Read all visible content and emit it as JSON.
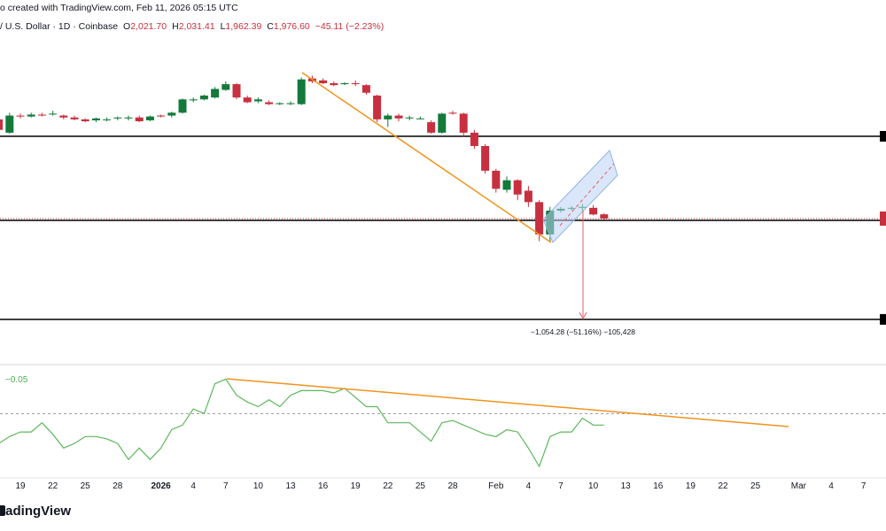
{
  "header": {
    "snapshot": "o created with TradingView.com, Feb 11, 2026 05:15 UTC",
    "symbol": "/ U.S. Dollar · 1D · Coinbase",
    "ohlc": [
      {
        "key": "O",
        "value": "2,021.70"
      },
      {
        "key": "H",
        "value": "2,031.41"
      },
      {
        "key": "L",
        "value": "1,962.39"
      },
      {
        "key": "C",
        "value": "1,976.60"
      }
    ],
    "change": "−45.11 (−2.23%)"
  },
  "chart_data": {
    "type": "candlestick",
    "categories": [
      null,
      null,
      "19",
      null,
      null,
      "22",
      null,
      null,
      "25",
      null,
      null,
      "28",
      null,
      null,
      null,
      "2026",
      null,
      null,
      "4",
      null,
      null,
      "7",
      null,
      null,
      "10",
      null,
      null,
      "13",
      null,
      null,
      "16",
      null,
      null,
      "19",
      null,
      null,
      "22",
      null,
      null,
      "25",
      null,
      null,
      "28",
      null,
      null,
      null,
      "Feb",
      null,
      null,
      "4",
      null,
      null,
      "7",
      null,
      null,
      "10",
      null,
      null,
      "13",
      null,
      null,
      "16",
      null,
      null,
      "19",
      null,
      null,
      "22",
      null,
      null,
      "25",
      null,
      null,
      null,
      "Mar",
      null,
      null,
      "4",
      null,
      null,
      "7",
      null
    ],
    "open": [
      3020,
      2880,
      3060,
      3050,
      3070,
      3080,
      3060,
      3040,
      3020,
      3010,
      3020,
      3030,
      3030,
      3040,
      3010,
      3060,
      3060,
      3090,
      3220,
      3230,
      3250,
      3330,
      3390,
      3250,
      3210,
      3200,
      3180,
      3180,
      3180,
      3450,
      3430,
      3400,
      3390,
      3400,
      3380,
      3270,
      3020,
      3060,
      3030,
      3030,
      2990,
      2880,
      3090,
      3080,
      2880,
      2740,
      2480,
      2280,
      2380,
      2270,
      2150,
      1810,
      2060,
      2080,
      2090,
      2090,
      2021.7,
      null,
      null,
      null,
      null,
      null,
      null,
      null,
      null,
      null,
      null,
      null,
      null,
      null,
      null,
      null,
      null,
      null,
      null,
      null,
      null,
      null,
      null,
      null,
      null,
      null
    ],
    "high": [
      3060,
      3090,
      3080,
      3090,
      3090,
      3110,
      3070,
      3060,
      3030,
      3040,
      3040,
      3050,
      3060,
      3060,
      3060,
      3070,
      3100,
      3240,
      3250,
      3280,
      3360,
      3420,
      3400,
      3270,
      3250,
      3220,
      3200,
      3210,
      3460,
      3480,
      3450,
      3420,
      3410,
      3430,
      3390,
      3280,
      3080,
      3080,
      3060,
      3050,
      3010,
      3090,
      3110,
      3090,
      2910,
      2760,
      2500,
      2420,
      2390,
      2320,
      2170,
      2100,
      2100,
      2110,
      2130,
      2120,
      2031.41,
      null,
      null,
      null,
      null,
      null,
      null,
      null,
      null,
      null,
      null,
      null,
      null,
      null,
      null,
      null,
      null,
      null,
      null,
      null,
      null,
      null,
      null,
      null,
      null,
      null
    ],
    "low": [
      2880,
      2870,
      3030,
      3040,
      3050,
      3060,
      3020,
      3010,
      2990,
      2990,
      3000,
      3010,
      3010,
      2990,
      3000,
      3040,
      3040,
      3080,
      3200,
      3220,
      3240,
      3320,
      3230,
      3190,
      3190,
      3170,
      3170,
      3170,
      3170,
      3400,
      3390,
      3370,
      3380,
      3370,
      3280,
      2990,
      2940,
      3000,
      3010,
      3020,
      2870,
      2870,
      3070,
      2840,
      2710,
      2450,
      2250,
      2250,
      2170,
      2100,
      1740,
      1740,
      2040,
      2060,
      2060,
      2010,
      1962.39,
      null,
      null,
      null,
      null,
      null,
      null,
      null,
      null,
      null,
      null,
      null,
      null,
      null,
      null,
      null,
      null,
      null,
      null,
      null,
      null,
      null,
      null,
      null,
      null,
      null
    ],
    "close": [
      2910,
      3060,
      3050,
      3070,
      3060,
      3080,
      3040,
      3020,
      3000,
      3030,
      3020,
      3040,
      3040,
      3000,
      3050,
      3050,
      3090,
      3230,
      3230,
      3270,
      3340,
      3390,
      3250,
      3200,
      3230,
      3180,
      3190,
      3190,
      3440,
      3420,
      3400,
      3380,
      3400,
      3390,
      3300,
      3020,
      3060,
      3030,
      3040,
      3030,
      2880,
      3080,
      3080,
      2880,
      2740,
      2480,
      2290,
      2380,
      2230,
      2150,
      1810,
      2060,
      2080,
      2090,
      2100,
      2020,
      1976.6,
      null,
      null,
      null,
      null,
      null,
      null,
      null,
      null,
      null,
      null,
      null,
      null,
      null,
      null,
      null,
      null,
      null,
      null,
      null,
      null,
      null,
      null,
      null,
      null,
      null
    ],
    "up_color": "#137a3a",
    "down_color": "#c8303f",
    "ylim": [
      460,
      4275
    ],
    "levels": [
      2842,
      1958,
      917
    ],
    "level_color": "#000000",
    "measurement_label": "−1,054.28 (−51.16%) −105,428",
    "indicator": {
      "type": "line",
      "color": "#5cb85c",
      "value_label": "−0.05",
      "ylim": [
        -0.28,
        0.19
      ],
      "zero_line": 0,
      "values": [
        -0.13,
        -0.1,
        -0.08,
        -0.08,
        -0.04,
        -0.09,
        -0.15,
        -0.13,
        -0.1,
        -0.1,
        -0.11,
        -0.13,
        -0.2,
        -0.15,
        -0.2,
        -0.15,
        -0.07,
        -0.05,
        0.02,
        0,
        0.13,
        0.15,
        0.08,
        0.05,
        0.03,
        0.06,
        0.03,
        0.08,
        0.1,
        0.1,
        0.1,
        0.09,
        0.11,
        0.07,
        0.03,
        0.03,
        -0.04,
        -0.04,
        -0.04,
        -0.08,
        -0.12,
        -0.04,
        -0.03,
        -0.05,
        -0.07,
        -0.09,
        -0.1,
        -0.07,
        -0.08,
        -0.15,
        -0.23,
        -0.1,
        -0.08,
        -0.08,
        -0.02,
        -0.05,
        -0.05,
        null,
        null,
        null,
        null,
        null,
        null,
        null,
        null,
        null,
        null,
        null,
        null,
        null,
        null,
        null,
        null,
        null,
        null,
        null,
        null,
        null,
        null,
        null,
        null,
        null
      ]
    }
  },
  "footer": {
    "logo": "TradingView"
  }
}
